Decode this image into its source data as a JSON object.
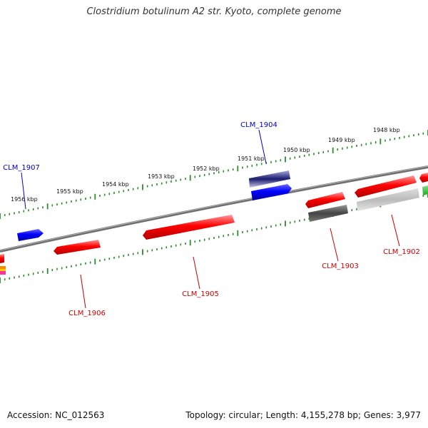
{
  "title": "Clostridium botulinum A2 str. Kyoto, complete genome",
  "footer": {
    "accession": "Accession: NC_012563",
    "summary": "Topology: circular; Length: 4,155,278 bp; Genes: 3,977"
  },
  "scale_labels": [
    "1956 kbp",
    "1955 kbp",
    "1954 kbp",
    "1953 kbp",
    "1952 kbp",
    "1951 kbp",
    "1950 kbp",
    "1949 kbp",
    "1948 kbp"
  ],
  "gene_labels": {
    "clm_1907": "CLM_1907",
    "clm_1904": "CLM_1904",
    "clm_1906": "CLM_1906",
    "clm_1905": "CLM_1905",
    "clm_1903": "CLM_1903",
    "clm_1902": "CLM_1902"
  },
  "colors": {
    "backbone": "#7a7a7a",
    "tick": "#2e8b2e",
    "forward_cds": "#0000ff",
    "reverse_cds": "#ff0000",
    "other_feature": "#555555",
    "light_feature": "#bbbbbb",
    "forward_label": "#0000cc",
    "reverse_label": "#cc0000"
  }
}
